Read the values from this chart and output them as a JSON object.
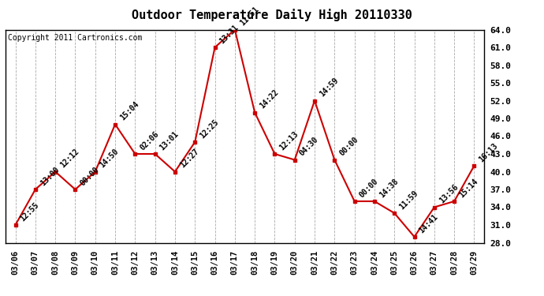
{
  "title": "Outdoor Temperature Daily High 20110330",
  "copyright": "Copyright 2011 Cartronics.com",
  "dates": [
    "03/06",
    "03/07",
    "03/08",
    "03/09",
    "03/10",
    "03/11",
    "03/12",
    "03/13",
    "03/14",
    "03/15",
    "03/16",
    "03/17",
    "03/18",
    "03/19",
    "03/20",
    "03/21",
    "03/22",
    "03/23",
    "03/24",
    "03/25",
    "03/26",
    "03/27",
    "03/28",
    "03/29"
  ],
  "values": [
    31.0,
    37.0,
    40.0,
    37.0,
    40.0,
    48.0,
    43.0,
    43.0,
    40.0,
    45.0,
    61.0,
    64.0,
    50.0,
    43.0,
    42.0,
    52.0,
    42.0,
    35.0,
    35.0,
    33.0,
    29.0,
    34.0,
    35.0,
    41.0
  ],
  "times": [
    "12:55",
    "13:00",
    "12:12",
    "00:00",
    "14:50",
    "15:04",
    "02:06",
    "13:01",
    "12:27",
    "12:25",
    "13:31",
    "11:51",
    "14:22",
    "12:13",
    "04:30",
    "14:59",
    "00:00",
    "00:00",
    "14:38",
    "11:59",
    "14:41",
    "13:56",
    "15:14",
    "16:13"
  ],
  "line_color": "#cc0000",
  "marker_color": "#cc0000",
  "bg_color": "#ffffff",
  "grid_color": "#aaaaaa",
  "ylim_min": 28.0,
  "ylim_max": 64.0,
  "yticks": [
    28.0,
    31.0,
    34.0,
    37.0,
    40.0,
    43.0,
    46.0,
    49.0,
    52.0,
    55.0,
    58.0,
    61.0,
    64.0
  ],
  "title_fontsize": 11,
  "copyright_fontsize": 7,
  "label_fontsize": 7
}
